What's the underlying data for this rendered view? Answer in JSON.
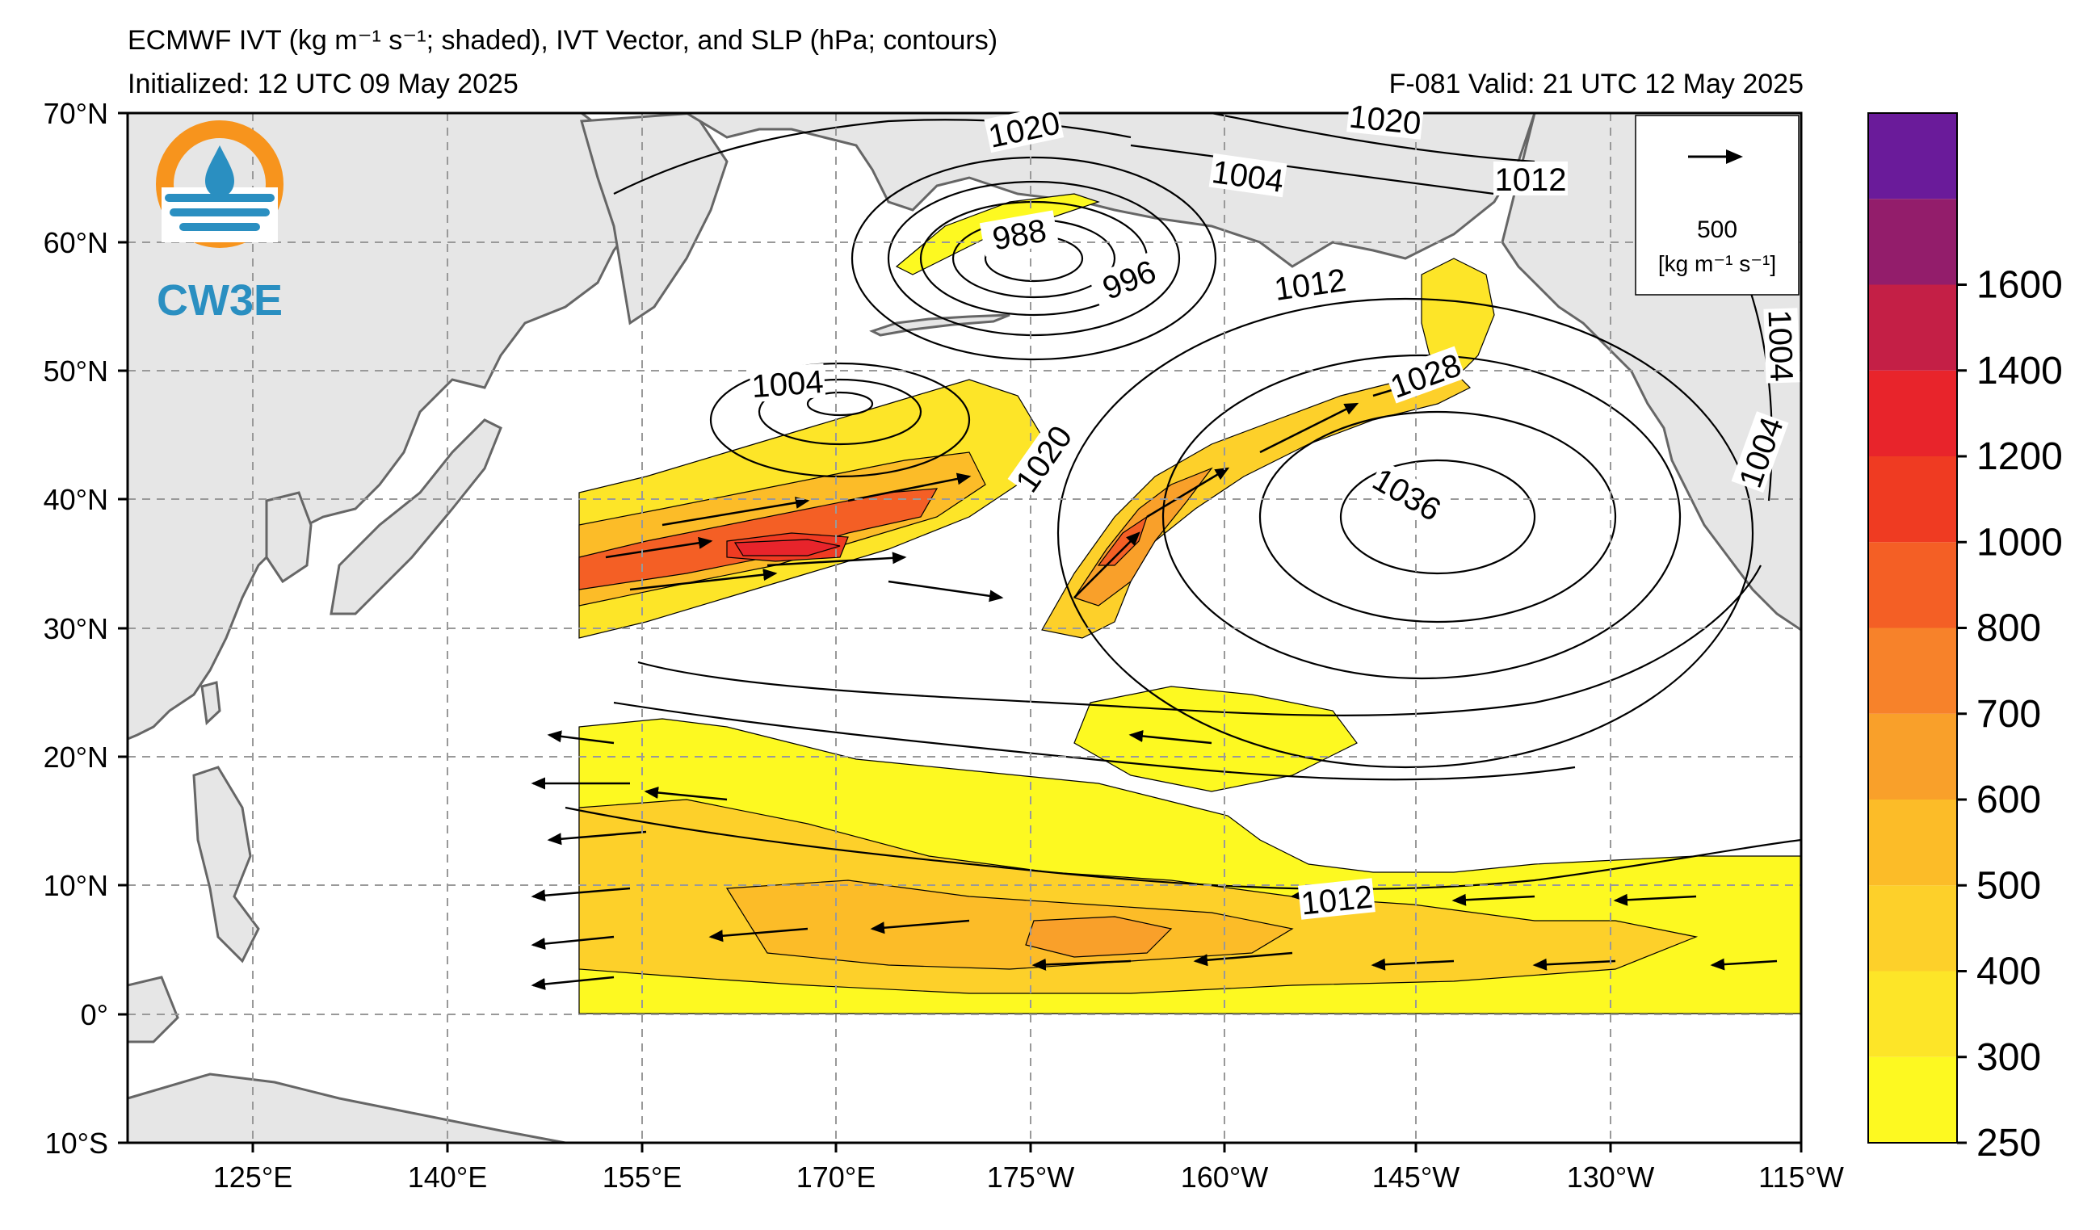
{
  "title": {
    "line1": "ECMWF IVT (kg m⁻¹ s⁻¹; shaded), IVT Vector, and SLP (hPa; contours)",
    "init": "Initialized: 12 UTC 09 May 2025",
    "valid": "F-081  Valid: 21 UTC 12 May 2025"
  },
  "logo": {
    "text": "CW3E",
    "ring_color": "#f7941d",
    "accent_color": "#2a8fc1"
  },
  "map": {
    "lat_labels": [
      "70°N",
      "60°N",
      "50°N",
      "40°N",
      "30°N",
      "20°N",
      "10°N",
      "0°",
      "10°S"
    ],
    "lon_labels": [
      "125°E",
      "140°E",
      "155°E",
      "170°E",
      "175°W",
      "160°W",
      "145°W",
      "130°W",
      "115°W"
    ],
    "land_color": "#e6e6e6",
    "coast_color": "#666666"
  },
  "vector_key": {
    "value": "500",
    "unit": "[kg m⁻¹ s⁻¹]"
  },
  "contour_labels": [
    "1020",
    "1020",
    "1004",
    "1012",
    "988",
    "996",
    "1012",
    "1004",
    "1020",
    "1028",
    "1036",
    "1004",
    "1004",
    "1012"
  ],
  "colorbar": {
    "levels": [
      250,
      300,
      400,
      500,
      600,
      700,
      800,
      1000,
      1200,
      1400,
      1600
    ],
    "tick_labels": [
      "250",
      "300",
      "400",
      "500",
      "600",
      "700",
      "800",
      "1000",
      "1200",
      "1400",
      "1600"
    ],
    "colors": [
      "#fdf921",
      "#fde528",
      "#fdd02a",
      "#fcbc28",
      "#f9a02a",
      "#f7822a",
      "#f45f25",
      "#ef3b22",
      "#e8242b",
      "#c41f46",
      "#931d6b",
      "#6a1b9a"
    ]
  },
  "ivt_regions": [
    {
      "name": "north-pacific-ar-core",
      "level": 1200
    },
    {
      "name": "northeast-pacific-ar",
      "level": 800
    },
    {
      "name": "alaska-plume",
      "level": 400
    },
    {
      "name": "tropical-band",
      "level": 600
    }
  ]
}
